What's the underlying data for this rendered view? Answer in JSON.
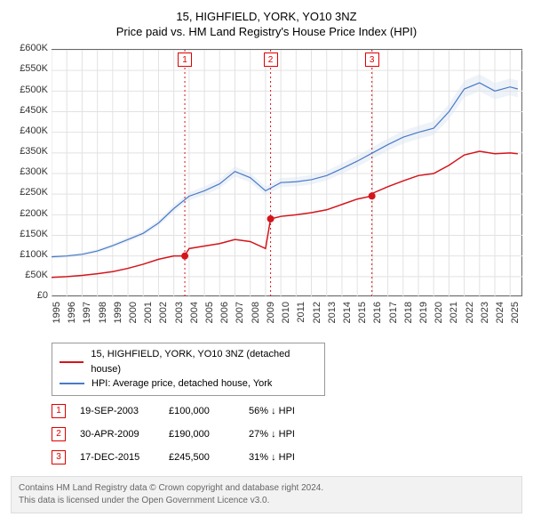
{
  "title_line1": "15, HIGHFIELD, YORK, YO10 3NZ",
  "title_line2": "Price paid vs. HM Land Registry's House Price Index (HPI)",
  "chart": {
    "type": "line",
    "plot_bg": "#ffffff",
    "grid_color": "#e2e2e2",
    "hpi_shade_color": "#eef3fa",
    "xlim": [
      1995,
      2025.8
    ],
    "ylim": [
      0,
      600000
    ],
    "ytick_step": 50000,
    "yticks": [
      "£0",
      "£50K",
      "£100K",
      "£150K",
      "£200K",
      "£250K",
      "£300K",
      "£350K",
      "£400K",
      "£450K",
      "£500K",
      "£550K",
      "£600K"
    ],
    "xticks": [
      1995,
      1996,
      1997,
      1998,
      1999,
      2000,
      2001,
      2002,
      2003,
      2004,
      2005,
      2006,
      2007,
      2008,
      2009,
      2010,
      2011,
      2012,
      2013,
      2014,
      2015,
      2016,
      2017,
      2018,
      2019,
      2020,
      2021,
      2022,
      2023,
      2024,
      2025
    ],
    "series": [
      {
        "key": "property",
        "label": "15, HIGHFIELD, YORK, YO10 3NZ (detached house)",
        "color": "#d4151b",
        "line_width": 1.5,
        "data": [
          [
            1995,
            48000
          ],
          [
            1996,
            50000
          ],
          [
            1997,
            53000
          ],
          [
            1998,
            57000
          ],
          [
            1999,
            62000
          ],
          [
            2000,
            70000
          ],
          [
            2001,
            80000
          ],
          [
            2002,
            92000
          ],
          [
            2003,
            100000
          ],
          [
            2003.7,
            100000
          ],
          [
            2004,
            118000
          ],
          [
            2005,
            124000
          ],
          [
            2006,
            130000
          ],
          [
            2007,
            140000
          ],
          [
            2008,
            135000
          ],
          [
            2009,
            118000
          ],
          [
            2009.33,
            190000
          ],
          [
            2010,
            196000
          ],
          [
            2011,
            200000
          ],
          [
            2012,
            205000
          ],
          [
            2013,
            212000
          ],
          [
            2014,
            225000
          ],
          [
            2015,
            238000
          ],
          [
            2015.96,
            245500
          ],
          [
            2016,
            252000
          ],
          [
            2017,
            268000
          ],
          [
            2018,
            282000
          ],
          [
            2019,
            295000
          ],
          [
            2020,
            300000
          ],
          [
            2021,
            320000
          ],
          [
            2022,
            345000
          ],
          [
            2023,
            354000
          ],
          [
            2024,
            348000
          ],
          [
            2025,
            350000
          ],
          [
            2025.5,
            348000
          ]
        ]
      },
      {
        "key": "hpi",
        "label": "HPI: Average price, detached house, York",
        "color": "#4a7ac7",
        "line_width": 1.2,
        "data": [
          [
            1995,
            98000
          ],
          [
            1996,
            100000
          ],
          [
            1997,
            104000
          ],
          [
            1998,
            112000
          ],
          [
            1999,
            125000
          ],
          [
            2000,
            140000
          ],
          [
            2001,
            155000
          ],
          [
            2002,
            180000
          ],
          [
            2003,
            215000
          ],
          [
            2004,
            245000
          ],
          [
            2005,
            258000
          ],
          [
            2006,
            275000
          ],
          [
            2007,
            305000
          ],
          [
            2008,
            290000
          ],
          [
            2009,
            258000
          ],
          [
            2010,
            278000
          ],
          [
            2011,
            280000
          ],
          [
            2012,
            285000
          ],
          [
            2013,
            295000
          ],
          [
            2014,
            312000
          ],
          [
            2015,
            330000
          ],
          [
            2016,
            350000
          ],
          [
            2017,
            370000
          ],
          [
            2018,
            388000
          ],
          [
            2019,
            400000
          ],
          [
            2020,
            410000
          ],
          [
            2021,
            450000
          ],
          [
            2022,
            505000
          ],
          [
            2023,
            520000
          ],
          [
            2024,
            500000
          ],
          [
            2025,
            510000
          ],
          [
            2025.5,
            505000
          ]
        ]
      }
    ],
    "sales": [
      {
        "n": "1",
        "x": 2003.72,
        "date": "19-SEP-2003",
        "price": 100000,
        "price_label": "£100,000",
        "delta": "56% ↓ HPI"
      },
      {
        "n": "2",
        "x": 2009.33,
        "date": "30-APR-2009",
        "price": 190000,
        "price_label": "£190,000",
        "delta": "27% ↓ HPI"
      },
      {
        "n": "3",
        "x": 2015.96,
        "date": "17-DEC-2015",
        "price": 245500,
        "price_label": "£245,500",
        "delta": "31% ↓ HPI"
      }
    ],
    "marker_radius": 4
  },
  "legend_border": "#999999",
  "attribution_line1": "Contains HM Land Registry data © Crown copyright and database right 2024.",
  "attribution_line2": "This data is licensed under the Open Government Licence v3.0."
}
